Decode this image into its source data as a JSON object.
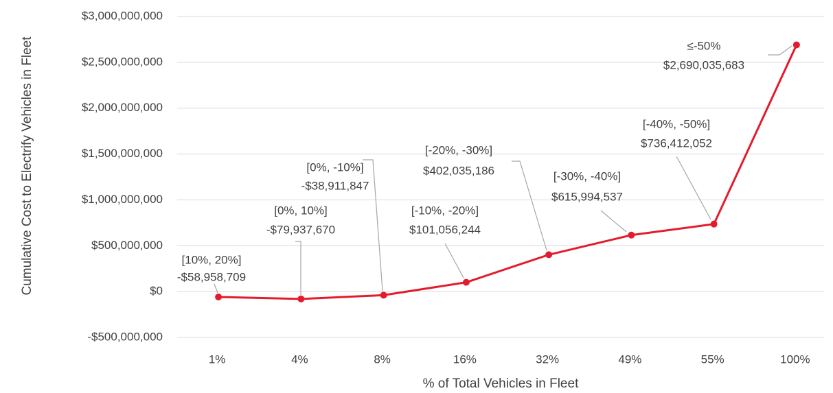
{
  "chart_data": {
    "type": "line",
    "x_label": "% of Total Vehicles in Fleet",
    "y_label": "Cumulative Cost to Electrify Vehicles in Fleet",
    "categories": [
      "1%",
      "4%",
      "8%",
      "16%",
      "32%",
      "49%",
      "55%",
      "100%"
    ],
    "values": [
      -58958709,
      -79937670,
      -38911847,
      101056244,
      402035186,
      615994537,
      736412052,
      2690035683
    ],
    "value_labels": [
      "-$58,958,709",
      "-$79,937,670",
      "-$38,911,847",
      "$101,056,244",
      "$402,035,186",
      "$615,994,537",
      "$736,412,052",
      "$2,690,035,683"
    ],
    "point_labels": [
      "[10%, 20%]",
      "[0%, 10%]",
      "[0%, -10%]",
      "[-10%, -20%]",
      "[-20%, -30%]",
      "[-30%, -40%]",
      "[-40%, -50%]",
      "≤-50%"
    ],
    "color": "#e31b2c",
    "ylim": [
      -500000000,
      3000000000
    ],
    "yticks": [
      {
        "value": -500000000,
        "label": "-$500,000,000"
      },
      {
        "value": 0,
        "label": "$0"
      },
      {
        "value": 500000000,
        "label": "$500,000,000"
      },
      {
        "value": 1000000000,
        "label": "$1,000,000,000"
      },
      {
        "value": 1500000000,
        "label": "$1,500,000,000"
      },
      {
        "value": 2000000000,
        "label": "$2,000,000,000"
      },
      {
        "value": 2500000000,
        "label": "$2,500,000,000"
      },
      {
        "value": 3000000000,
        "label": "$3,000,000,000"
      }
    ],
    "grid": true
  }
}
